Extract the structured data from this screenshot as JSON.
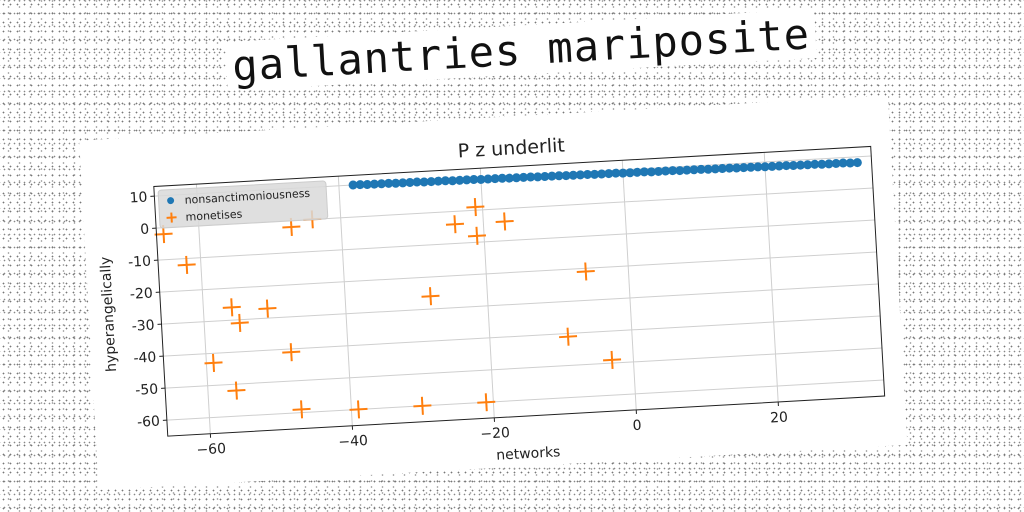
{
  "header": {
    "title": "gallantries mariposite"
  },
  "chart_data": {
    "type": "scatter",
    "title": "P z underlit",
    "xlabel": "networks",
    "ylabel": "hyperangelically",
    "xlim": [
      -66,
      35
    ],
    "ylim": [
      -65,
      13
    ],
    "xticks": [
      -60,
      -40,
      -20,
      0,
      20
    ],
    "yticks": [
      10,
      0,
      -10,
      -20,
      -30,
      -40,
      -50,
      -60
    ],
    "grid": true,
    "legend_position": "top-left",
    "series": [
      {
        "name": "nonsanctimoniousness",
        "marker": "circle",
        "color": "#1f77b4",
        "x": [
          -38,
          -37,
          -36,
          -35,
          -34,
          -33,
          -32,
          -31,
          -30,
          -29,
          -28,
          -27,
          -26,
          -25,
          -24,
          -23,
          -22,
          -21,
          -20,
          -19,
          -18,
          -17,
          -16,
          -15,
          -14,
          -13,
          -12,
          -11,
          -10,
          -9,
          -8,
          -7,
          -6,
          -5,
          -4,
          -3,
          -2,
          -1,
          0,
          1,
          2,
          3,
          4,
          5,
          6,
          7,
          8,
          9,
          10,
          11,
          12,
          13,
          14,
          15,
          16,
          17,
          18,
          19,
          20,
          21,
          22,
          23,
          24,
          25,
          26,
          27,
          28,
          29,
          30,
          31,
          32,
          33
        ],
        "y": [
          10.0,
          10.0,
          9.9,
          9.9,
          9.9,
          9.9,
          9.8,
          9.8,
          9.8,
          9.8,
          9.7,
          9.7,
          9.7,
          9.7,
          9.6,
          9.6,
          9.6,
          9.6,
          9.5,
          9.5,
          9.5,
          9.5,
          9.4,
          9.4,
          9.4,
          9.4,
          9.3,
          9.3,
          9.3,
          9.3,
          9.2,
          9.2,
          9.2,
          9.2,
          9.1,
          9.1,
          9.1,
          9.1,
          9.0,
          9.0,
          9.0,
          9.0,
          8.9,
          8.9,
          8.9,
          8.9,
          8.8,
          8.8,
          8.8,
          8.8,
          8.7,
          8.7,
          8.7,
          8.7,
          8.6,
          8.6,
          8.6,
          8.6,
          8.5,
          8.5,
          8.5,
          8.5,
          8.4,
          8.4,
          8.4,
          8.4,
          8.3,
          8.3,
          8.3,
          8.3,
          8.2,
          8.2
        ]
      },
      {
        "name": "monetises",
        "marker": "plus",
        "color": "#ff7f0e",
        "x": [
          -65,
          -62,
          -59,
          -56,
          -56,
          -55,
          -51,
          -48,
          -47,
          -47,
          -44,
          -39,
          -30,
          -28,
          -24,
          -21,
          -21,
          -21,
          -17,
          -9,
          -6,
          -3
        ],
        "y": [
          -2,
          -12,
          -43,
          -52,
          -26,
          -31,
          -27,
          -41,
          -2,
          -59,
          0,
          -60,
          -60,
          -26,
          -4,
          -8,
          -60,
          1,
          -4,
          -41,
          -21,
          -49
        ]
      }
    ]
  }
}
